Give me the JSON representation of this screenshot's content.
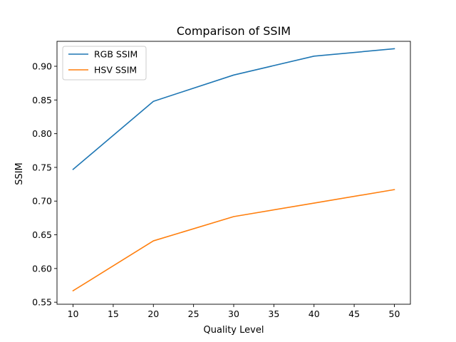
{
  "chart_data": {
    "type": "line",
    "title": "Comparison of SSIM",
    "xlabel": "Quality Level",
    "ylabel": "SSIM",
    "x": [
      10,
      20,
      30,
      40,
      50
    ],
    "xlim": [
      8,
      52
    ],
    "ylim": [
      0.547,
      0.937
    ],
    "xticks": [
      10,
      15,
      20,
      25,
      30,
      35,
      40,
      45,
      50
    ],
    "yticks": [
      0.55,
      0.6,
      0.65,
      0.7,
      0.75,
      0.8,
      0.85,
      0.9
    ],
    "grid": false,
    "legend_position": "upper-left",
    "series": [
      {
        "name": "RGB SSIM",
        "color": "#1f77b4",
        "values": [
          0.747,
          0.848,
          0.887,
          0.915,
          0.926
        ]
      },
      {
        "name": "HSV SSIM",
        "color": "#ff7f0e",
        "values": [
          0.567,
          0.641,
          0.677,
          0.697,
          0.717
        ]
      }
    ]
  }
}
